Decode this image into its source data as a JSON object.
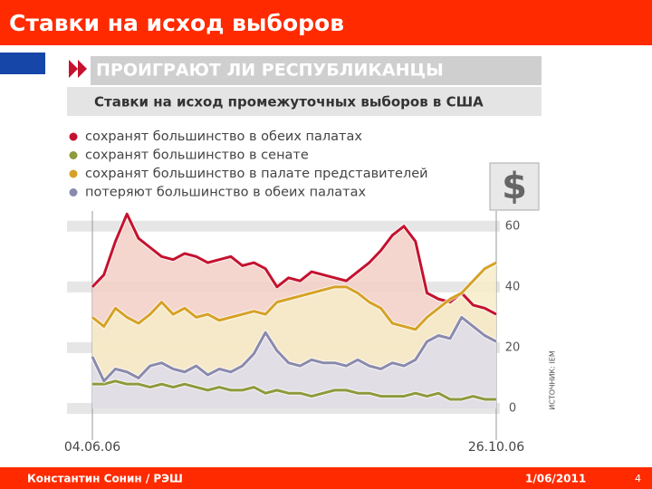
{
  "slide": {
    "title": "Ставки на исход выборов"
  },
  "chart_data": {
    "type": "line",
    "title": "ПРОИГРАЮТ ЛИ РЕСПУБЛИКАНЦЫ",
    "subtitle": "Ставки на исход промежуточных выборов в США",
    "badge": "$",
    "source": "ИСТОЧНИК: IEM",
    "categories": [
      "04.06.06",
      null,
      null,
      null,
      null,
      null,
      null,
      null,
      null,
      null,
      null,
      null,
      null,
      null,
      null,
      null,
      null,
      null,
      null,
      null,
      null,
      null,
      null,
      null,
      null,
      null,
      null,
      null,
      null,
      null,
      null,
      null,
      null,
      null,
      null,
      "26.10.06"
    ],
    "ylim": [
      0,
      65
    ],
    "yticks": [
      0,
      20,
      40,
      60
    ],
    "grid": true,
    "series": [
      {
        "name": "сохранят большинство в обеих палатах",
        "color": "#c4122f",
        "fill": "#f2cfc6",
        "values": [
          40,
          44,
          55,
          64,
          56,
          53,
          50,
          49,
          51,
          50,
          48,
          49,
          50,
          47,
          48,
          46,
          40,
          43,
          42,
          45,
          44,
          43,
          42,
          45,
          48,
          52,
          57,
          60,
          55,
          38,
          36,
          35,
          38,
          34,
          33,
          31
        ]
      },
      {
        "name": "сохранят большинство в сенате",
        "color": "#8f9a3c",
        "fill": null,
        "values": [
          8,
          8,
          9,
          8,
          8,
          7,
          8,
          7,
          8,
          7,
          6,
          7,
          6,
          6,
          7,
          5,
          6,
          5,
          5,
          4,
          5,
          6,
          6,
          5,
          5,
          4,
          4,
          4,
          5,
          4,
          5,
          3,
          3,
          4,
          3,
          3
        ]
      },
      {
        "name": "сохранят большинство в палате представителей",
        "color": "#d6a226",
        "fill": "#f6ecc8",
        "values": [
          30,
          27,
          33,
          30,
          28,
          31,
          35,
          31,
          33,
          30,
          31,
          29,
          30,
          31,
          32,
          31,
          35,
          36,
          37,
          38,
          39,
          40,
          40,
          38,
          35,
          33,
          28,
          27,
          26,
          30,
          33,
          36,
          38,
          42,
          46,
          48
        ]
      },
      {
        "name": "потеряют большинство в обеих палатах",
        "color": "#8a8aae",
        "fill": "#dedcea",
        "values": [
          17,
          9,
          13,
          12,
          10,
          14,
          15,
          13,
          12,
          14,
          11,
          13,
          12,
          14,
          18,
          25,
          19,
          15,
          14,
          16,
          15,
          15,
          14,
          16,
          14,
          13,
          15,
          14,
          16,
          22,
          24,
          23,
          30,
          27,
          24,
          22
        ]
      }
    ]
  },
  "footer": {
    "author": "Константин Сонин / РЭШ",
    "date": "1/06/2011",
    "page": "4"
  }
}
